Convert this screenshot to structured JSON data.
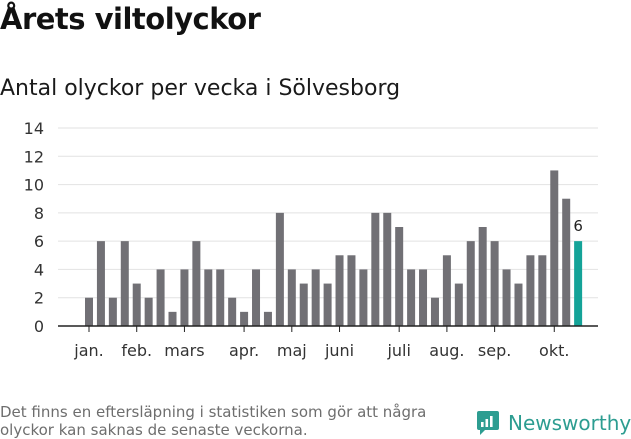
{
  "title": "Årets viltolyckor",
  "subtitle": "Antal olyckor per vecka i Sölvesborg",
  "note": "Det finns en eftersläpning i statistiken som gör att några olyckor kan saknas de senaste veckorna.",
  "brand": "Newsworthy",
  "colors": {
    "bar": "#717075",
    "highlight": "#14a398",
    "grid": "#e2e2e2",
    "brand": "#2d9d91"
  },
  "icons": {
    "logo": "newsworthy-logo-icon"
  },
  "chart_data": {
    "type": "bar",
    "title": "Antal olyckor per vecka i Sölvesborg",
    "xlabel": "",
    "ylabel": "",
    "ylim": [
      0,
      14
    ],
    "yticks": [
      0,
      2,
      4,
      6,
      8,
      10,
      12,
      14
    ],
    "grid": true,
    "values": [
      2,
      6,
      2,
      6,
      3,
      2,
      4,
      1,
      4,
      6,
      4,
      4,
      2,
      1,
      4,
      1,
      8,
      4,
      3,
      4,
      3,
      5,
      5,
      4,
      8,
      8,
      7,
      4,
      4,
      2,
      5,
      3,
      6,
      7,
      6,
      4,
      3,
      5,
      5,
      11,
      9,
      6
    ],
    "highlight_last": true,
    "last_value_label": "6",
    "month_labels": [
      {
        "label": "jan.",
        "week": 1
      },
      {
        "label": "feb.",
        "week": 5
      },
      {
        "label": "mars",
        "week": 9
      },
      {
        "label": "apr.",
        "week": 14
      },
      {
        "label": "maj",
        "week": 18
      },
      {
        "label": "juni",
        "week": 22
      },
      {
        "label": "juli",
        "week": 27
      },
      {
        "label": "aug.",
        "week": 31
      },
      {
        "label": "sep.",
        "week": 35
      },
      {
        "label": "okt.",
        "week": 40
      }
    ]
  }
}
